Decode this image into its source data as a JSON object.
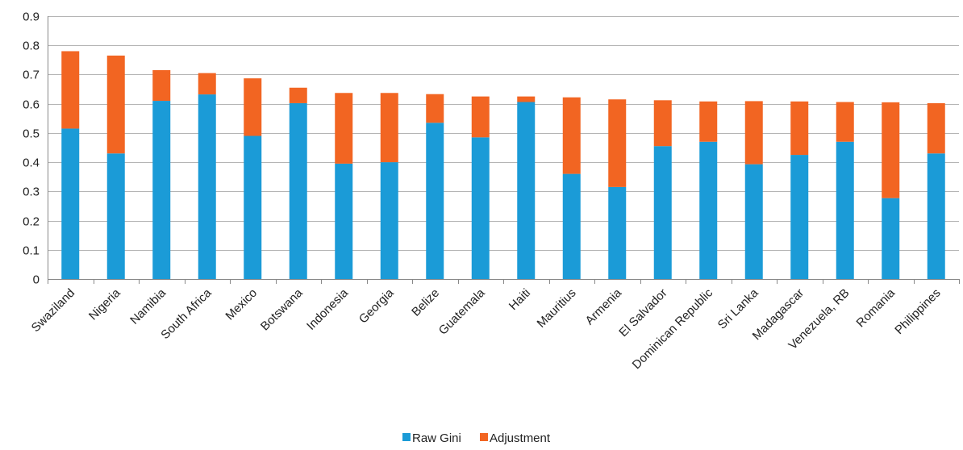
{
  "chart_data": {
    "type": "bar",
    "stacked": true,
    "title": "",
    "xlabel": "",
    "ylabel": "",
    "ylim": [
      0,
      0.9
    ],
    "yticks": [
      "0",
      "0.1",
      "0.2",
      "0.3",
      "0.4",
      "0.5",
      "0.6",
      "0.7",
      "0.8",
      "0.9"
    ],
    "grid": true,
    "legend_position": "bottom",
    "categories": [
      "Swaziland",
      "Nigeria",
      "Namibia",
      "South Africa",
      "Mexico",
      "Botswana",
      "Indonesia",
      "Georgia",
      "Belize",
      "Guatemala",
      "Haiti",
      "Mauritius",
      "Armenia",
      "El Salvador",
      "Dominican Republic",
      "Sri Lanka",
      "Madagascar",
      "Venezuela, RB",
      "Romania",
      "Philippines"
    ],
    "series": [
      {
        "name": "Raw Gini",
        "color": "#1B9BD7",
        "values": [
          0.515,
          0.43,
          0.61,
          0.632,
          0.49,
          0.602,
          0.395,
          0.4,
          0.535,
          0.485,
          0.606,
          0.36,
          0.315,
          0.455,
          0.47,
          0.393,
          0.425,
          0.47,
          0.277,
          0.43
        ]
      },
      {
        "name": "Adjustment",
        "color": "#F26522",
        "values": [
          0.265,
          0.335,
          0.105,
          0.073,
          0.197,
          0.053,
          0.242,
          0.237,
          0.098,
          0.14,
          0.019,
          0.262,
          0.3,
          0.157,
          0.138,
          0.216,
          0.183,
          0.136,
          0.328,
          0.172
        ]
      }
    ]
  }
}
